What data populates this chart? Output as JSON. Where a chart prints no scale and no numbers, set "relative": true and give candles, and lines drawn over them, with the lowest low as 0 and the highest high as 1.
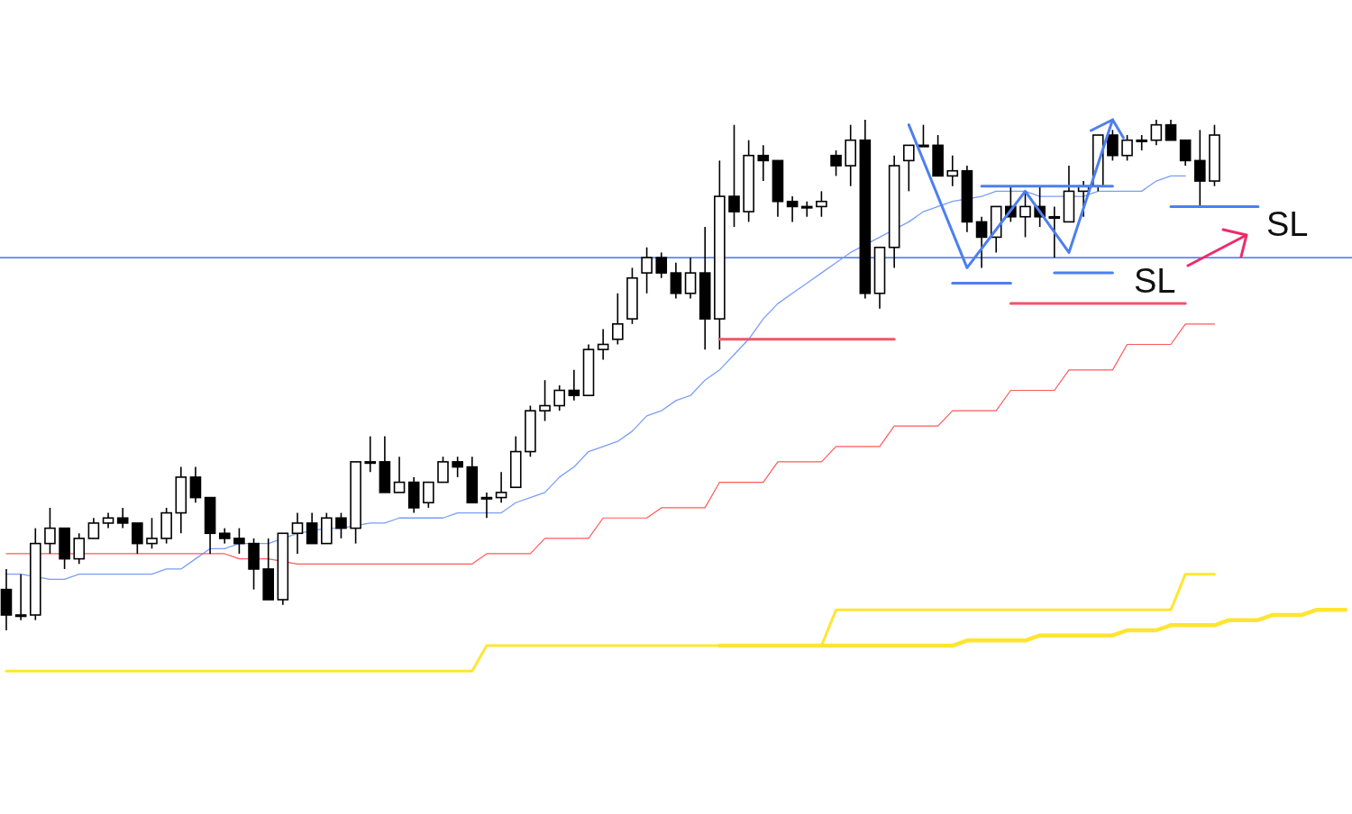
{
  "chart_data": {
    "type": "candlestick",
    "relative": true,
    "categories": [
      null,
      null,
      null,
      null,
      null,
      null,
      null,
      null,
      null,
      null,
      null,
      null,
      null,
      null,
      null,
      null,
      null,
      null,
      null,
      null,
      null,
      null,
      null,
      null,
      null,
      null,
      null,
      null,
      null,
      null,
      null,
      null,
      null,
      null,
      null,
      null,
      null,
      null,
      null,
      null,
      null,
      null,
      null,
      null,
      null,
      null,
      null,
      null,
      null,
      null,
      null,
      null,
      null,
      null,
      null,
      null,
      null,
      null,
      null,
      null,
      null,
      null,
      null,
      null,
      null,
      null,
      null,
      null,
      null,
      null,
      null,
      null,
      null,
      null,
      null,
      null,
      null,
      null,
      null,
      null,
      null,
      null,
      null,
      null,
      null,
      null,
      null,
      null,
      null,
      null,
      null,
      null,
      null
    ],
    "ohlc": [
      [
        0.08,
        0.12,
        0.0,
        0.03
      ],
      [
        0.03,
        0.11,
        0.02,
        0.03
      ],
      [
        0.03,
        0.2,
        0.02,
        0.17
      ],
      [
        0.17,
        0.24,
        0.15,
        0.2
      ],
      [
        0.2,
        0.2,
        0.12,
        0.14
      ],
      [
        0.14,
        0.19,
        0.13,
        0.18
      ],
      [
        0.18,
        0.22,
        0.18,
        0.21
      ],
      [
        0.21,
        0.23,
        0.2,
        0.22
      ],
      [
        0.22,
        0.24,
        0.2,
        0.21
      ],
      [
        0.21,
        0.21,
        0.15,
        0.17
      ],
      [
        0.17,
        0.22,
        0.16,
        0.18
      ],
      [
        0.18,
        0.24,
        0.17,
        0.23
      ],
      [
        0.23,
        0.32,
        0.19,
        0.3
      ],
      [
        0.3,
        0.32,
        0.25,
        0.26
      ],
      [
        0.26,
        0.26,
        0.15,
        0.19
      ],
      [
        0.19,
        0.2,
        0.17,
        0.18
      ],
      [
        0.18,
        0.2,
        0.15,
        0.17
      ],
      [
        0.17,
        0.18,
        0.08,
        0.12
      ],
      [
        0.12,
        0.18,
        0.06,
        0.06
      ],
      [
        0.06,
        0.19,
        0.05,
        0.19
      ],
      [
        0.19,
        0.23,
        0.15,
        0.21
      ],
      [
        0.21,
        0.23,
        0.17,
        0.17
      ],
      [
        0.17,
        0.23,
        0.17,
        0.22
      ],
      [
        0.22,
        0.23,
        0.18,
        0.2
      ],
      [
        0.2,
        0.33,
        0.17,
        0.33
      ],
      [
        0.33,
        0.38,
        0.31,
        0.33
      ],
      [
        0.33,
        0.38,
        0.27,
        0.27
      ],
      [
        0.27,
        0.34,
        0.27,
        0.29
      ],
      [
        0.29,
        0.3,
        0.23,
        0.24
      ],
      [
        0.25,
        0.29,
        0.24,
        0.29
      ],
      [
        0.29,
        0.34,
        0.29,
        0.33
      ],
      [
        0.33,
        0.34,
        0.3,
        0.32
      ],
      [
        0.32,
        0.34,
        0.25,
        0.25
      ],
      [
        0.26,
        0.27,
        0.22,
        0.26
      ],
      [
        0.26,
        0.31,
        0.25,
        0.27
      ],
      [
        0.28,
        0.38,
        0.28,
        0.35
      ],
      [
        0.35,
        0.44,
        0.34,
        0.43
      ],
      [
        0.43,
        0.49,
        0.41,
        0.44
      ],
      [
        0.44,
        0.48,
        0.43,
        0.47
      ],
      [
        0.47,
        0.51,
        0.45,
        0.46
      ],
      [
        0.46,
        0.56,
        0.46,
        0.55
      ],
      [
        0.55,
        0.59,
        0.53,
        0.56
      ],
      [
        0.57,
        0.66,
        0.56,
        0.6
      ],
      [
        0.61,
        0.71,
        0.6,
        0.69
      ],
      [
        0.7,
        0.75,
        0.66,
        0.73
      ],
      [
        0.73,
        0.74,
        0.69,
        0.7
      ],
      [
        0.7,
        0.72,
        0.65,
        0.66
      ],
      [
        0.66,
        0.73,
        0.65,
        0.7
      ],
      [
        0.7,
        0.79,
        0.55,
        0.61
      ],
      [
        0.61,
        0.92,
        0.55,
        0.85
      ],
      [
        0.85,
        0.99,
        0.79,
        0.82
      ],
      [
        0.82,
        0.96,
        0.8,
        0.93
      ],
      [
        0.93,
        0.95,
        0.88,
        0.92
      ],
      [
        0.92,
        0.92,
        0.81,
        0.84
      ],
      [
        0.84,
        0.85,
        0.8,
        0.83
      ],
      [
        0.83,
        0.84,
        0.81,
        0.83
      ],
      [
        0.83,
        0.86,
        0.81,
        0.84
      ],
      [
        0.93,
        0.94,
        0.89,
        0.91
      ],
      [
        0.91,
        0.99,
        0.87,
        0.96
      ],
      [
        0.96,
        1.0,
        0.65,
        0.66
      ],
      [
        0.66,
        0.75,
        0.63,
        0.75
      ],
      [
        0.75,
        0.93,
        0.71,
        0.91
      ],
      [
        0.92,
        0.95,
        0.86,
        0.95
      ],
      [
        0.95,
        0.99,
        0.95,
        0.95
      ],
      [
        0.95,
        0.97,
        0.89,
        0.89
      ],
      [
        0.89,
        0.93,
        0.87,
        0.9
      ],
      [
        0.9,
        0.91,
        0.78,
        0.8
      ],
      [
        0.8,
        0.81,
        0.71,
        0.77
      ],
      [
        0.77,
        0.83,
        0.74,
        0.83
      ],
      [
        0.83,
        0.87,
        0.8,
        0.81
      ],
      [
        0.81,
        0.86,
        0.77,
        0.83
      ],
      [
        0.83,
        0.87,
        0.79,
        0.81
      ],
      [
        0.81,
        0.83,
        0.73,
        0.81
      ],
      [
        0.8,
        0.91,
        0.8,
        0.86
      ],
      [
        0.86,
        0.88,
        0.81,
        0.87
      ],
      [
        0.87,
        0.97,
        0.86,
        0.97
      ],
      [
        0.97,
        0.98,
        0.92,
        0.93
      ],
      [
        0.93,
        0.97,
        0.92,
        0.96
      ],
      [
        0.96,
        0.97,
        0.94,
        0.96
      ],
      [
        0.96,
        1.0,
        0.95,
        0.99
      ],
      [
        0.99,
        1.0,
        0.96,
        0.96
      ],
      [
        0.96,
        0.96,
        0.91,
        0.92
      ],
      [
        0.92,
        0.98,
        0.83,
        0.88
      ],
      [
        0.88,
        0.99,
        0.87,
        0.97
      ],
      null,
      null,
      null,
      null,
      null,
      null,
      null,
      null,
      null
    ],
    "series": [
      {
        "type": "line",
        "color": "#7a9ef5",
        "values": [
          0.11,
          0.11,
          null,
          0.1,
          0.1,
          0.11,
          0.11,
          0.11,
          0.11,
          0.11,
          0.11,
          0.12,
          0.12,
          0.14,
          0.16,
          0.16,
          0.17,
          null,
          0.17,
          null,
          0.19,
          null,
          0.2,
          0.2,
          null,
          0.21,
          0.21,
          0.22,
          0.22,
          0.22,
          0.22,
          0.23,
          0.23,
          0.23,
          0.23,
          0.25,
          0.26,
          0.27,
          0.3,
          0.32,
          0.35,
          0.36,
          0.37,
          0.39,
          0.42,
          0.43,
          0.45,
          0.46,
          0.49,
          0.51,
          0.54,
          0.57,
          0.61,
          0.64,
          0.66,
          0.68,
          0.7,
          0.72,
          0.74,
          null,
          0.77,
          null,
          0.8,
          0.82,
          0.83,
          0.84,
          null,
          0.85,
          0.86,
          0.86,
          0.86,
          0.85,
          0.85,
          null,
          0.85,
          0.86,
          0.86,
          0.86,
          0.86,
          0.88,
          0.89,
          0.89,
          null,
          null,
          null,
          null,
          null,
          null,
          null,
          null,
          null,
          null,
          null
        ]
      },
      {
        "type": "line",
        "color": "#ff5a5a",
        "values": [
          0.15,
          0.15,
          null,
          0.15,
          null,
          null,
          0.15,
          0.15,
          0.15,
          0.15,
          0.15,
          0.15,
          0.15,
          0.15,
          0.15,
          0.15,
          0.14,
          0.14,
          0.14,
          null,
          0.13,
          0.13,
          0.13,
          0.13,
          0.13,
          0.13,
          0.13,
          0.13,
          0.13,
          0.13,
          0.13,
          0.13,
          0.13,
          0.15,
          0.15,
          0.15,
          0.15,
          0.18,
          0.18,
          0.18,
          0.18,
          0.22,
          0.22,
          0.22,
          0.22,
          0.24,
          0.24,
          0.24,
          0.24,
          0.29,
          0.29,
          0.29,
          0.29,
          0.33,
          0.33,
          0.33,
          0.33,
          0.36,
          0.36,
          0.36,
          0.36,
          0.4,
          0.4,
          0.4,
          0.4,
          0.43,
          0.43,
          0.43,
          0.43,
          0.47,
          0.47,
          0.47,
          0.47,
          0.51,
          0.51,
          0.51,
          0.51,
          0.56,
          0.56,
          0.56,
          0.56,
          0.6,
          0.6,
          0.6,
          null,
          null,
          null,
          null,
          null,
          null,
          null,
          null,
          null
        ]
      },
      {
        "type": "line",
        "color": "#ffe633",
        "values": [
          -0.08,
          -0.08,
          -0.08,
          -0.08,
          -0.08,
          -0.08,
          -0.08,
          -0.08,
          -0.08,
          -0.08,
          -0.08,
          -0.08,
          -0.08,
          -0.08,
          -0.08,
          -0.08,
          -0.08,
          -0.08,
          -0.08,
          -0.08,
          -0.08,
          -0.08,
          -0.08,
          -0.08,
          -0.08,
          -0.08,
          -0.08,
          -0.08,
          -0.08,
          -0.08,
          -0.08,
          -0.08,
          -0.08,
          -0.03,
          -0.03,
          -0.03,
          -0.03,
          -0.03,
          -0.03,
          -0.03,
          -0.03,
          -0.03,
          -0.03,
          -0.03,
          -0.03,
          -0.03,
          -0.03,
          -0.03,
          -0.03,
          -0.03,
          -0.03,
          -0.03,
          -0.03,
          -0.03,
          -0.03,
          -0.03,
          -0.03,
          0.04,
          0.04,
          0.04,
          0.04,
          0.04,
          0.04,
          0.04,
          0.04,
          0.04,
          0.04,
          0.04,
          0.04,
          0.04,
          0.04,
          0.04,
          0.04,
          0.04,
          0.04,
          0.04,
          0.04,
          0.04,
          0.04,
          0.04,
          0.04,
          0.11,
          0.11,
          0.11,
          null,
          null,
          null,
          null,
          null,
          null,
          null,
          null,
          null
        ]
      },
      {
        "type": "line",
        "color": "#ffe433",
        "values": [
          null,
          null,
          null,
          null,
          null,
          null,
          null,
          null,
          null,
          null,
          null,
          null,
          null,
          null,
          null,
          null,
          null,
          null,
          null,
          null,
          null,
          null,
          null,
          null,
          null,
          null,
          null,
          null,
          null,
          null,
          null,
          null,
          null,
          null,
          null,
          null,
          null,
          null,
          null,
          null,
          null,
          null,
          null,
          null,
          null,
          null,
          null,
          null,
          null,
          -0.03,
          -0.03,
          -0.03,
          -0.03,
          -0.03,
          -0.03,
          -0.03,
          -0.03,
          -0.03,
          -0.03,
          -0.03,
          -0.03,
          -0.03,
          -0.03,
          -0.03,
          -0.03,
          -0.03,
          -0.02,
          -0.02,
          -0.02,
          -0.02,
          -0.02,
          -0.01,
          -0.01,
          -0.01,
          -0.01,
          -0.01,
          -0.01,
          0,
          0,
          0,
          0.01,
          0.01,
          0.01,
          0.01,
          0.02,
          0.02,
          0.02,
          0.03,
          0.03,
          0.03,
          0.04,
          0.04,
          0.04
        ]
      },
      {
        "type": "line",
        "color": "#f2546a",
        "values": [
          null,
          null,
          null,
          null,
          null,
          null,
          null,
          null,
          null,
          null,
          null,
          null,
          null,
          null,
          null,
          null,
          null,
          null,
          null,
          null,
          null,
          null,
          null,
          null,
          null,
          null,
          null,
          null,
          null,
          null,
          null,
          null,
          null,
          null,
          null,
          null,
          null,
          null,
          null,
          null,
          null,
          null,
          null,
          null,
          null,
          null,
          null,
          null,
          null,
          0.57,
          0.57,
          0.57,
          0.57,
          0.57,
          0.57,
          0.57,
          0.57,
          0.57,
          0.57,
          0.57,
          0.57,
          0.57,
          null,
          null,
          null,
          null,
          null,
          null,
          null,
          null,
          null,
          null,
          null,
          null,
          null,
          null,
          null,
          null,
          null,
          null,
          null,
          null,
          null,
          null,
          null,
          null,
          null,
          null,
          null,
          null,
          null,
          null,
          null
        ]
      },
      {
        "type": "line",
        "color": "#f2546a",
        "values": [
          null,
          null,
          null,
          null,
          null,
          null,
          null,
          null,
          null,
          null,
          null,
          null,
          null,
          null,
          null,
          null,
          null,
          null,
          null,
          null,
          null,
          null,
          null,
          null,
          null,
          null,
          null,
          null,
          null,
          null,
          null,
          null,
          null,
          null,
          null,
          null,
          null,
          null,
          null,
          null,
          null,
          null,
          null,
          null,
          null,
          null,
          null,
          null,
          null,
          null,
          null,
          null,
          null,
          null,
          null,
          null,
          null,
          null,
          null,
          null,
          null,
          null,
          null,
          null,
          null,
          null,
          null,
          null,
          null,
          0.64,
          0.64,
          0.64,
          0.64,
          0.64,
          0.64,
          0.64,
          0.64,
          0.64,
          0.64,
          0.64,
          0.64,
          0.64,
          null,
          null,
          null,
          null,
          null,
          null,
          null,
          null,
          null,
          null,
          null
        ]
      },
      {
        "type": "line",
        "color": "#4d7ff0",
        "values": [
          null,
          null,
          null,
          null,
          null,
          null,
          null,
          null,
          null,
          null,
          null,
          null,
          null,
          null,
          null,
          null,
          null,
          null,
          null,
          null,
          null,
          null,
          null,
          null,
          null,
          null,
          null,
          null,
          null,
          null,
          null,
          null,
          null,
          null,
          null,
          null,
          null,
          null,
          null,
          null,
          null,
          null,
          null,
          null,
          null,
          null,
          null,
          null,
          null,
          null,
          null,
          null,
          null,
          null,
          null,
          null,
          null,
          null,
          null,
          null,
          null,
          null,
          null,
          null,
          null,
          0.68,
          0.68,
          0.68,
          0.68,
          0.68,
          null,
          null,
          null,
          null,
          null,
          null,
          null,
          null,
          null,
          null,
          null,
          null,
          null,
          null,
          null,
          null,
          null,
          null,
          null,
          null,
          null,
          null,
          null
        ]
      },
      {
        "type": "line",
        "color": "#4d7ff0",
        "values": [
          null,
          null,
          null,
          null,
          null,
          null,
          null,
          null,
          null,
          null,
          null,
          null,
          null,
          null,
          null,
          null,
          null,
          null,
          null,
          null,
          null,
          null,
          null,
          null,
          null,
          null,
          null,
          null,
          null,
          null,
          null,
          null,
          null,
          null,
          null,
          null,
          null,
          null,
          null,
          null,
          null,
          null,
          null,
          null,
          null,
          null,
          null,
          null,
          null,
          null,
          null,
          null,
          null,
          null,
          null,
          null,
          null,
          null,
          null,
          null,
          null,
          null,
          null,
          null,
          null,
          null,
          null,
          null,
          null,
          null,
          null,
          null,
          0.7,
          0.7,
          0.7,
          0.7,
          0.7,
          null,
          null,
          null,
          null,
          null,
          null,
          null,
          null,
          null,
          null,
          null,
          null,
          null,
          null,
          null,
          null
        ]
      },
      {
        "type": "line",
        "color": "#4d7ff0",
        "values": [
          null,
          null,
          null,
          null,
          null,
          null,
          null,
          null,
          null,
          null,
          null,
          null,
          null,
          null,
          null,
          null,
          null,
          null,
          null,
          null,
          null,
          null,
          null,
          null,
          null,
          null,
          null,
          null,
          null,
          null,
          null,
          null,
          null,
          null,
          null,
          null,
          null,
          null,
          null,
          null,
          null,
          null,
          null,
          null,
          null,
          null,
          null,
          null,
          null,
          null,
          null,
          null,
          null,
          null,
          null,
          null,
          null,
          null,
          null,
          null,
          null,
          null,
          null,
          null,
          null,
          null,
          null,
          0.87,
          0.87,
          0.87,
          0.87,
          0.87,
          0.87,
          0.87,
          0.87,
          0.87,
          0.87,
          null,
          null,
          null,
          null,
          null,
          null,
          null,
          null,
          null,
          null,
          null,
          null,
          null,
          null,
          null,
          null
        ]
      },
      {
        "type": "line",
        "color": "#4d7ff0",
        "values": [
          null,
          null,
          null,
          null,
          null,
          null,
          null,
          null,
          null,
          null,
          null,
          null,
          null,
          null,
          null,
          null,
          null,
          null,
          null,
          null,
          null,
          null,
          null,
          null,
          null,
          null,
          null,
          null,
          null,
          null,
          null,
          null,
          null,
          null,
          null,
          null,
          null,
          null,
          null,
          null,
          null,
          null,
          null,
          null,
          null,
          null,
          null,
          null,
          null,
          null,
          null,
          null,
          null,
          null,
          null,
          null,
          null,
          null,
          null,
          null,
          null,
          null,
          null,
          null,
          null,
          null,
          null,
          null,
          null,
          null,
          null,
          null,
          null,
          null,
          null,
          null,
          null,
          null,
          null,
          null,
          0.83,
          0.83,
          0.83,
          0.83,
          0.83,
          0.83,
          0.83,
          null,
          null,
          null,
          null,
          null,
          null
        ]
      },
      {
        "type": "line",
        "color": "#4d7ff0",
        "values": [
          null,
          null,
          null,
          null,
          null,
          null,
          null,
          null,
          null,
          null,
          null,
          null,
          null,
          null,
          null,
          null,
          null,
          null,
          null,
          null,
          null,
          null,
          null,
          null,
          null,
          null,
          null,
          null,
          null,
          null,
          null,
          null,
          null,
          null,
          null,
          null,
          null,
          null,
          null,
          null,
          null,
          null,
          null,
          null,
          null,
          null,
          null,
          null,
          null,
          null,
          null,
          null,
          null,
          null,
          null,
          null,
          null,
          null,
          null,
          null,
          null,
          null,
          0.99,
          null,
          null,
          null,
          0.71,
          null,
          null,
          null,
          0.86,
          null,
          null,
          0.74,
          null,
          null,
          1.0,
          null,
          null,
          null,
          null,
          null,
          null,
          null,
          null,
          null,
          null,
          null,
          null,
          null,
          null,
          null,
          null
        ]
      }
    ],
    "ref_lines": [
      {
        "axis": "y",
        "value": 0.73,
        "color": "#2255ee"
      }
    ],
    "annotations": [
      "SL",
      "SL"
    ]
  }
}
